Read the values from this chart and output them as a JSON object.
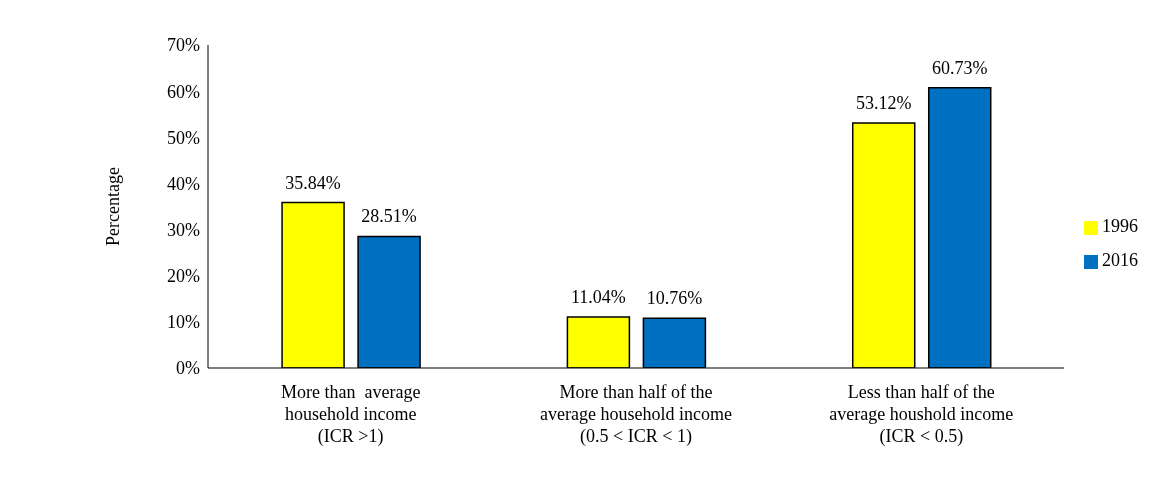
{
  "chart_data": {
    "type": "bar",
    "ylabel": "Percentage",
    "categories": [
      "More than  average\nhousehold income\n(ICR >1)",
      "More than half of the\naverage household income\n(0.5 < ICR < 1)",
      "Less than half of the\naverage houshold income\n(ICR < 0.5)"
    ],
    "series": [
      {
        "name": "1996",
        "color": "#ffff00",
        "values": [
          35.84,
          11.04,
          53.12
        ],
        "value_labels": [
          "35.84%",
          "11.04%",
          "53.12%"
        ]
      },
      {
        "name": "2016",
        "color": "#0070c0",
        "values": [
          28.51,
          10.76,
          60.73
        ],
        "value_labels": [
          "28.51%",
          "10.76%",
          "60.73%"
        ]
      }
    ],
    "ylim": [
      0,
      70
    ],
    "yticks": [
      {
        "value": 0,
        "label": "0%"
      },
      {
        "value": 10,
        "label": "10%"
      },
      {
        "value": 20,
        "label": "20%"
      },
      {
        "value": 30,
        "label": "30%"
      },
      {
        "value": 40,
        "label": "40%"
      },
      {
        "value": 50,
        "label": "50%"
      },
      {
        "value": 60,
        "label": "60%"
      },
      {
        "value": 70,
        "label": "70%"
      }
    ],
    "grid": false,
    "legend": "right"
  }
}
